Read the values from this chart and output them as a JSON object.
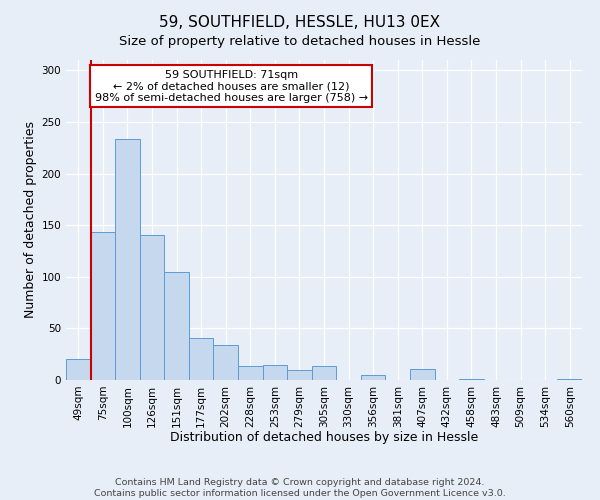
{
  "title": "59, SOUTHFIELD, HESSLE, HU13 0EX",
  "subtitle": "Size of property relative to detached houses in Hessle",
  "xlabel": "Distribution of detached houses by size in Hessle",
  "ylabel": "Number of detached properties",
  "bar_labels": [
    "49sqm",
    "75sqm",
    "100sqm",
    "126sqm",
    "151sqm",
    "177sqm",
    "202sqm",
    "228sqm",
    "253sqm",
    "279sqm",
    "305sqm",
    "330sqm",
    "356sqm",
    "381sqm",
    "407sqm",
    "432sqm",
    "458sqm",
    "483sqm",
    "509sqm",
    "534sqm",
    "560sqm"
  ],
  "bar_values": [
    20,
    143,
    233,
    140,
    105,
    41,
    34,
    14,
    15,
    10,
    14,
    0,
    5,
    0,
    11,
    0,
    1,
    0,
    0,
    0,
    1
  ],
  "bar_color": "#c5d8ee",
  "bar_edge_color": "#5b9bd5",
  "ylim": [
    0,
    310
  ],
  "yticks": [
    0,
    50,
    100,
    150,
    200,
    250,
    300
  ],
  "annotation_title": "59 SOUTHFIELD: 71sqm",
  "annotation_line1": "← 2% of detached houses are smaller (12)",
  "annotation_line2": "98% of semi-detached houses are larger (758) →",
  "annotation_box_color": "#ffffff",
  "annotation_box_edge_color": "#cc0000",
  "vline_color": "#cc0000",
  "footer_line1": "Contains HM Land Registry data © Crown copyright and database right 2024.",
  "footer_line2": "Contains public sector information licensed under the Open Government Licence v3.0.",
  "background_color": "#e8eef8",
  "grid_color": "#ffffff",
  "title_fontsize": 11,
  "subtitle_fontsize": 9.5,
  "axis_label_fontsize": 9,
  "tick_fontsize": 7.5,
  "footer_fontsize": 6.8,
  "annotation_fontsize": 8
}
